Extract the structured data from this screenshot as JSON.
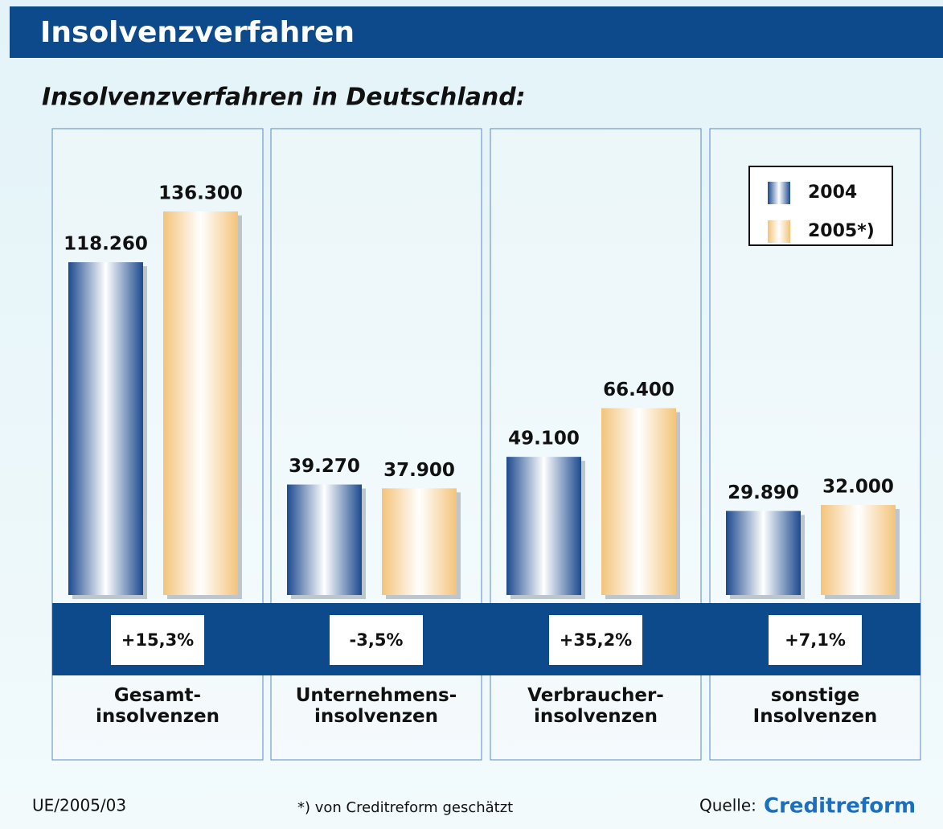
{
  "chart_data": {
    "type": "bar",
    "title": "Insolvenzverfahren",
    "subtitle": "Insolvenzverfahren in Deutschland:",
    "categories": [
      "Gesamt-\ninsolvenzen",
      "Unternehmens-\ninsolvenzen",
      "Verbraucher-\ninsolvenzen",
      "sonstige\nInsolvenzen"
    ],
    "series": [
      {
        "name": "2004",
        "color": "#1d4a8e",
        "values": [
          118260,
          39270,
          49100,
          29890
        ],
        "value_labels": [
          "118.260",
          "39.270",
          "49.100",
          "29.890"
        ]
      },
      {
        "name": "2005*)",
        "color": "#f3c47a",
        "values": [
          136300,
          37900,
          66400,
          32000
        ],
        "value_labels": [
          "136.300",
          "37.900",
          "66.400",
          "32.000"
        ]
      }
    ],
    "changes": [
      "+15,3%",
      "-3,5%",
      "+35,2%",
      "+7,1%"
    ],
    "code": "UE/2005/03",
    "footnote": "*) von Creditreform geschätzt",
    "source_label": "Quelle:",
    "source": "Creditreform"
  }
}
